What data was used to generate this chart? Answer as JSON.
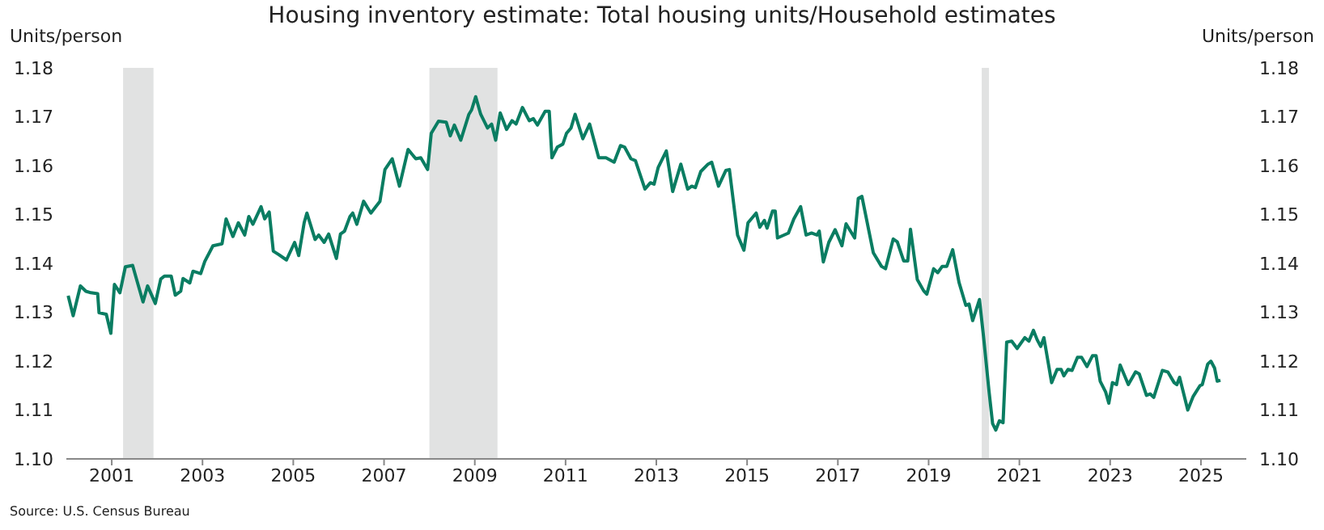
{
  "chart_data": {
    "type": "line",
    "title": "Housing inventory estimate: Total housing units/Household estimates",
    "ylabel": "Units/person",
    "y2label": "Units/person",
    "annotations": [
      "Source: U.S. Census Bureau"
    ],
    "x": [
      2000.04,
      2000.15,
      2000.31,
      2000.43,
      2000.54,
      2000.69,
      2000.72,
      2000.88,
      2000.98,
      2001.06,
      2001.18,
      2001.3,
      2001.46,
      2001.57,
      2001.69,
      2001.79,
      2001.96,
      2002.08,
      2002.16,
      2002.31,
      2002.4,
      2002.52,
      2002.57,
      2002.72,
      2002.79,
      2002.96,
      2003.05,
      2003.23,
      2003.43,
      2003.52,
      2003.67,
      2003.79,
      2003.93,
      2004.02,
      2004.11,
      2004.29,
      2004.37,
      2004.47,
      2004.56,
      2004.68,
      2004.85,
      2005.03,
      2005.12,
      2005.24,
      2005.3,
      2005.48,
      2005.56,
      2005.68,
      2005.78,
      2005.95,
      2006.04,
      2006.13,
      2006.25,
      2006.31,
      2006.4,
      2006.55,
      2006.71,
      2006.91,
      2007.02,
      2007.18,
      2007.34,
      2007.53,
      2007.7,
      2007.81,
      2007.96,
      2008.04,
      2008.2,
      2008.37,
      2008.46,
      2008.55,
      2008.69,
      2008.87,
      2008.93,
      2009.02,
      2009.13,
      2009.28,
      2009.37,
      2009.46,
      2009.56,
      2009.7,
      2009.82,
      2009.91,
      2010.05,
      2010.2,
      2010.29,
      2010.38,
      2010.55,
      2010.64,
      2010.7,
      2010.82,
      2010.94,
      2011.02,
      2011.12,
      2011.21,
      2011.38,
      2011.53,
      2011.73,
      2011.89,
      2012.07,
      2012.21,
      2012.3,
      2012.44,
      2012.54,
      2012.75,
      2012.87,
      2012.95,
      2013.04,
      2013.22,
      2013.36,
      2013.54,
      2013.69,
      2013.78,
      2013.86,
      2013.98,
      2014.14,
      2014.22,
      2014.37,
      2014.53,
      2014.61,
      2014.79,
      2014.93,
      2015.02,
      2015.2,
      2015.28,
      2015.38,
      2015.44,
      2015.56,
      2015.62,
      2015.67,
      2015.91,
      2016.03,
      2016.18,
      2016.3,
      2016.42,
      2016.54,
      2016.59,
      2016.68,
      2016.8,
      2016.94,
      2017.09,
      2017.18,
      2017.37,
      2017.45,
      2017.53,
      2017.78,
      2017.96,
      2018.05,
      2018.22,
      2018.31,
      2018.45,
      2018.54,
      2018.6,
      2018.75,
      2018.89,
      2018.96,
      2019.11,
      2019.2,
      2019.3,
      2019.4,
      2019.53,
      2019.67,
      2019.82,
      2019.89,
      2019.97,
      2020.12,
      2020.21,
      2020.33,
      2020.41,
      2020.48,
      2020.56,
      2020.64,
      2020.72,
      2020.83,
      2020.95,
      2021.12,
      2021.21,
      2021.31,
      2021.39,
      2021.47,
      2021.54,
      2021.71,
      2021.83,
      2021.92,
      2021.98,
      2022.07,
      2022.16,
      2022.28,
      2022.37,
      2022.49,
      2022.61,
      2022.69,
      2022.78,
      2022.9,
      2022.97,
      2023.05,
      2023.14,
      2023.22,
      2023.4,
      2023.56,
      2023.64,
      2023.8,
      2023.88,
      2023.96,
      2024.15,
      2024.27,
      2024.41,
      2024.47,
      2024.53,
      2024.71,
      2024.83,
      2024.98,
      2025.03,
      2025.15,
      2025.22,
      2025.3,
      2025.36,
      2025.43
    ],
    "series": [
      {
        "color": "#0a7d62",
        "values": [
          1.1334,
          1.1293,
          1.1354,
          1.1343,
          1.134,
          1.1338,
          1.1299,
          1.1296,
          1.1257,
          1.1357,
          1.134,
          1.1393,
          1.1396,
          1.136,
          1.1321,
          1.1354,
          1.1318,
          1.1368,
          1.1374,
          1.1374,
          1.1335,
          1.1343,
          1.1369,
          1.136,
          1.1384,
          1.1379,
          1.1404,
          1.1436,
          1.144,
          1.1491,
          1.1455,
          1.1483,
          1.1458,
          1.1496,
          1.148,
          1.1516,
          1.1491,
          1.1505,
          1.1425,
          1.1418,
          1.1407,
          1.1443,
          1.1416,
          1.1483,
          1.1503,
          1.1449,
          1.1458,
          1.1443,
          1.146,
          1.141,
          1.146,
          1.1466,
          1.1496,
          1.1503,
          1.148,
          1.1527,
          1.1503,
          1.1527,
          1.1592,
          1.1614,
          1.1558,
          1.1633,
          1.1614,
          1.1616,
          1.1592,
          1.1666,
          1.1691,
          1.1689,
          1.1661,
          1.1683,
          1.1652,
          1.1705,
          1.1714,
          1.1741,
          1.1705,
          1.1677,
          1.1685,
          1.1652,
          1.1708,
          1.1674,
          1.1692,
          1.1685,
          1.1719,
          1.1692,
          1.1696,
          1.1683,
          1.1711,
          1.1711,
          1.1616,
          1.1638,
          1.1644,
          1.1666,
          1.1677,
          1.1705,
          1.1655,
          1.1685,
          1.1616,
          1.1616,
          1.1607,
          1.1641,
          1.1638,
          1.1614,
          1.161,
          1.1552,
          1.1565,
          1.1562,
          1.1596,
          1.163,
          1.1547,
          1.1603,
          1.1552,
          1.1558,
          1.1555,
          1.1588,
          1.1603,
          1.1607,
          1.1558,
          1.159,
          1.1592,
          1.1458,
          1.1427,
          1.1483,
          1.1503,
          1.1474,
          1.1488,
          1.1472,
          1.1507,
          1.1507,
          1.1452,
          1.1462,
          1.1491,
          1.1516,
          1.1458,
          1.1462,
          1.1458,
          1.1466,
          1.1403,
          1.1443,
          1.1469,
          1.1436,
          1.1481,
          1.1452,
          1.1533,
          1.1537,
          1.1422,
          1.1394,
          1.1389,
          1.145,
          1.1444,
          1.1405,
          1.1405,
          1.147,
          1.1367,
          1.1344,
          1.1337,
          1.1389,
          1.1381,
          1.1394,
          1.1394,
          1.1428,
          1.1361,
          1.1314,
          1.1317,
          1.1283,
          1.1326,
          1.125,
          1.1139,
          1.1072,
          1.1059,
          1.1078,
          1.1074,
          1.1239,
          1.1241,
          1.1226,
          1.1248,
          1.1241,
          1.1263,
          1.1244,
          1.123,
          1.1248,
          1.1156,
          1.1183,
          1.1183,
          1.117,
          1.1183,
          1.1181,
          1.1208,
          1.1208,
          1.1189,
          1.1211,
          1.1211,
          1.1159,
          1.1137,
          1.1114,
          1.1156,
          1.1152,
          1.1192,
          1.1152,
          1.1178,
          1.1174,
          1.113,
          1.1133,
          1.1126,
          1.1181,
          1.1178,
          1.1156,
          1.1152,
          1.1167,
          1.11,
          1.1128,
          1.115,
          1.1152,
          1.1194,
          1.12,
          1.1186,
          1.1159,
          1.1161
        ]
      }
    ],
    "xlim": [
      2000,
      2026
    ],
    "xticks": [
      2001,
      2003,
      2005,
      2007,
      2009,
      2011,
      2013,
      2015,
      2017,
      2019,
      2021,
      2023,
      2025
    ],
    "ylim": [
      1.1,
      1.18
    ],
    "yticks": [
      {
        "value": 1.1,
        "label": "1.10"
      },
      {
        "value": 1.11,
        "label": "1.11"
      },
      {
        "value": 1.12,
        "label": "1.12"
      },
      {
        "value": 1.13,
        "label": "1.13"
      },
      {
        "value": 1.14,
        "label": "1.14"
      },
      {
        "value": 1.15,
        "label": "1.15"
      },
      {
        "value": 1.16,
        "label": "1.16"
      },
      {
        "value": 1.17,
        "label": "1.17"
      },
      {
        "value": 1.18,
        "label": "1.18"
      }
    ],
    "y2lim": [
      1.1,
      1.18
    ],
    "y2ticks": [
      {
        "value": 1.1,
        "label": "1.10"
      },
      {
        "value": 1.11,
        "label": "1.11"
      },
      {
        "value": 1.12,
        "label": "1.12"
      },
      {
        "value": 1.13,
        "label": "1.13"
      },
      {
        "value": 1.14,
        "label": "1.14"
      },
      {
        "value": 1.15,
        "label": "1.15"
      },
      {
        "value": 1.16,
        "label": "1.16"
      },
      {
        "value": 1.17,
        "label": "1.17"
      },
      {
        "value": 1.18,
        "label": "1.18"
      }
    ],
    "bands": [
      {
        "axis": "x",
        "from": 2001.25,
        "to": 2001.92,
        "color": "#e1e2e2"
      },
      {
        "axis": "x",
        "from": 2008.0,
        "to": 2009.5,
        "color": "#e1e2e2"
      },
      {
        "axis": "x",
        "from": 2020.17,
        "to": 2020.33,
        "color": "#e1e2e2"
      }
    ],
    "grid": false,
    "legend": false,
    "marker": "none",
    "line_style": "solid"
  }
}
